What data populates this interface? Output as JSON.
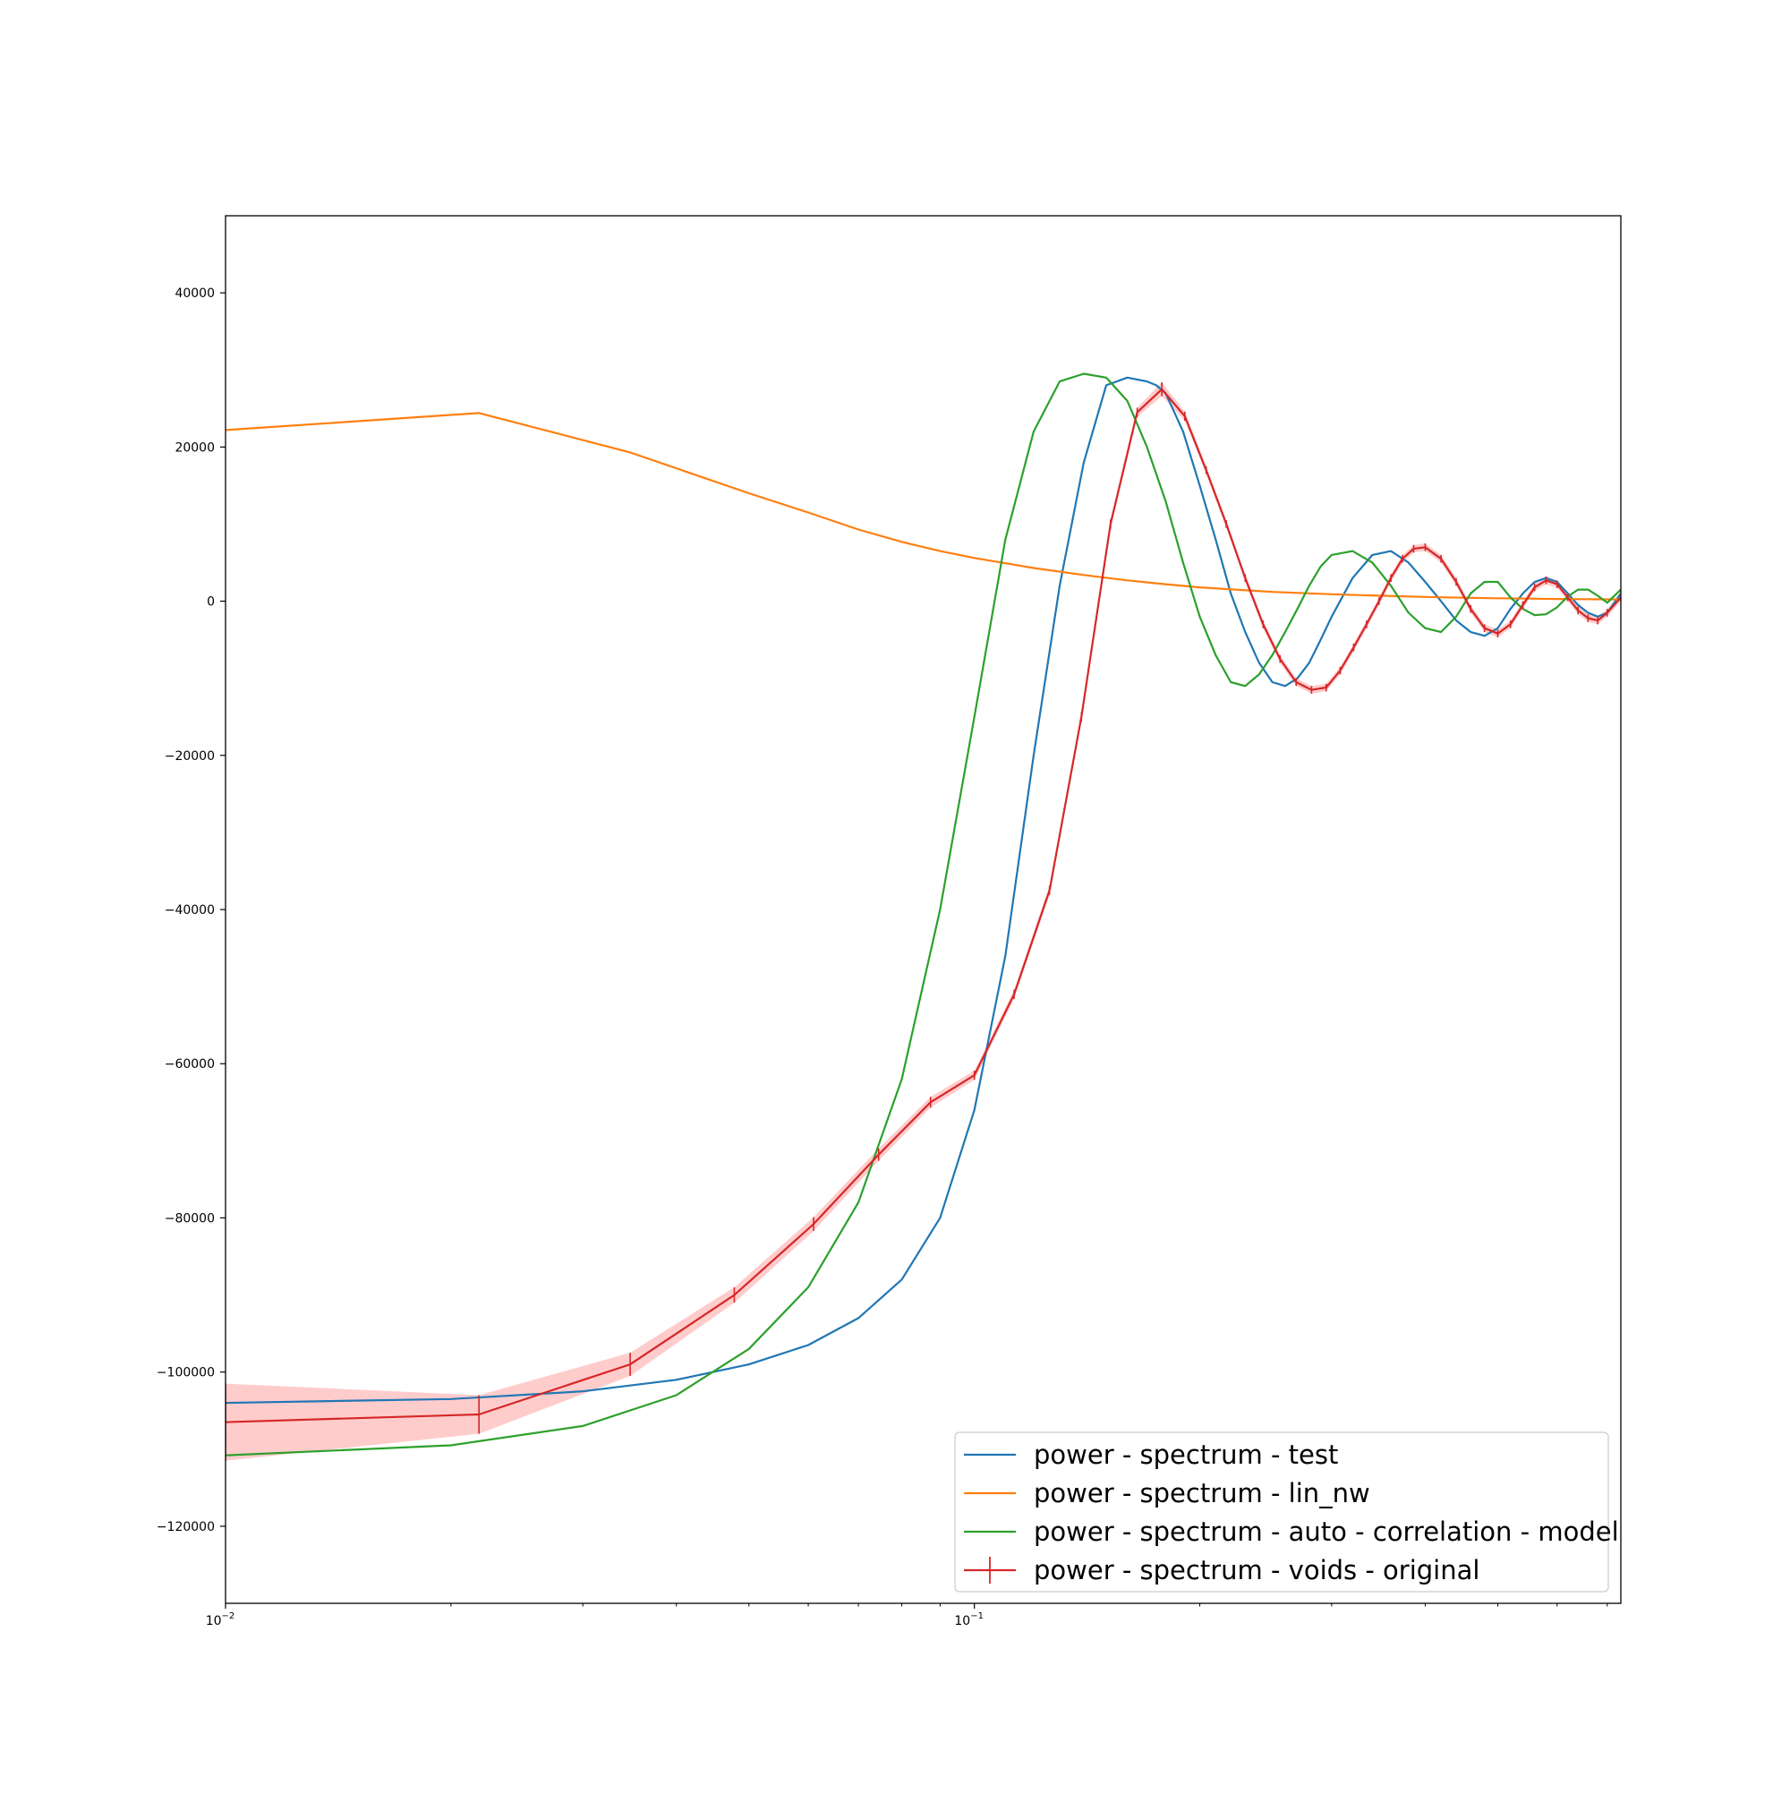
{
  "chart_data": {
    "type": "line",
    "title": "",
    "xlabel": "",
    "ylabel": "",
    "xscale": "log",
    "xlim": [
      0.01,
      0.73
    ],
    "ylim": [
      -130000,
      50000
    ],
    "grid": false,
    "legend_placement": "lower right",
    "x_tick_labels": [
      {
        "value": 0.01,
        "base": "10",
        "exp": "−2"
      },
      {
        "value": 0.1,
        "base": "10",
        "exp": "−1"
      }
    ],
    "x_minor_ticks": [
      0.02,
      0.03,
      0.04,
      0.05,
      0.06,
      0.07,
      0.08,
      0.09,
      0.2,
      0.3,
      0.4,
      0.5,
      0.6,
      0.7
    ],
    "y_ticks": [
      40000,
      20000,
      0,
      -20000,
      -40000,
      -60000,
      -80000,
      -100000,
      -120000
    ],
    "y_tick_labels": [
      "40000",
      "20000",
      "0",
      "−20000",
      "−40000",
      "−60000",
      "−80000",
      "−100000",
      "−120000"
    ],
    "series": [
      {
        "name": "power - spectrum - test",
        "color": "#1f77b4",
        "style": "line",
        "x": [
          0.01,
          0.02,
          0.03,
          0.04,
          0.05,
          0.06,
          0.07,
          0.08,
          0.09,
          0.1,
          0.11,
          0.12,
          0.13,
          0.14,
          0.15,
          0.16,
          0.17,
          0.175,
          0.18,
          0.19,
          0.2,
          0.21,
          0.22,
          0.23,
          0.24,
          0.25,
          0.26,
          0.27,
          0.28,
          0.29,
          0.3,
          0.32,
          0.34,
          0.36,
          0.38,
          0.4,
          0.42,
          0.44,
          0.46,
          0.48,
          0.5,
          0.52,
          0.54,
          0.56,
          0.58,
          0.6,
          0.62,
          0.64,
          0.66,
          0.68,
          0.7,
          0.73
        ],
        "y": [
          -104000,
          -103500,
          -102500,
          -101000,
          -99000,
          -96500,
          -93000,
          -88000,
          -80000,
          -66000,
          -46000,
          -20000,
          2000,
          18000,
          28000,
          29000,
          28500,
          28000,
          27000,
          22000,
          15000,
          8000,
          1000,
          -4000,
          -8000,
          -10500,
          -11000,
          -10000,
          -8000,
          -5000,
          -2000,
          3000,
          6000,
          6500,
          5000,
          2500,
          0,
          -2500,
          -4000,
          -4500,
          -3500,
          -1000,
          1000,
          2500,
          3000,
          2500,
          1000,
          -500,
          -1500,
          -2000,
          -1500,
          1000
        ]
      },
      {
        "name": "power - spectrum - lin_nw",
        "color": "#ff7f0e",
        "style": "line",
        "x": [
          0.01,
          0.0218,
          0.0347,
          0.05,
          0.06,
          0.07,
          0.08,
          0.09,
          0.1,
          0.12,
          0.14,
          0.16,
          0.18,
          0.2,
          0.25,
          0.3,
          0.35,
          0.4,
          0.45,
          0.5,
          0.55,
          0.6,
          0.65,
          0.7,
          0.73
        ],
        "y": [
          22200,
          24400,
          19300,
          14000,
          11500,
          9300,
          7700,
          6500,
          5600,
          4300,
          3400,
          2700,
          2200,
          1800,
          1200,
          900,
          700,
          550,
          450,
          380,
          330,
          290,
          260,
          240,
          230
        ]
      },
      {
        "name": "power - spectrum - auto - correlation - model",
        "color": "#2ca02c",
        "style": "line",
        "x": [
          0.01,
          0.02,
          0.03,
          0.04,
          0.05,
          0.06,
          0.07,
          0.08,
          0.09,
          0.1,
          0.11,
          0.12,
          0.13,
          0.14,
          0.15,
          0.16,
          0.165,
          0.17,
          0.18,
          0.19,
          0.2,
          0.21,
          0.22,
          0.23,
          0.24,
          0.25,
          0.26,
          0.27,
          0.28,
          0.29,
          0.3,
          0.32,
          0.34,
          0.36,
          0.38,
          0.4,
          0.42,
          0.44,
          0.46,
          0.48,
          0.5,
          0.52,
          0.54,
          0.56,
          0.58,
          0.6,
          0.62,
          0.64,
          0.66,
          0.68,
          0.7,
          0.73
        ],
        "y": [
          -110800,
          -109500,
          -107000,
          -103000,
          -97000,
          -89000,
          -78000,
          -62000,
          -40000,
          -15000,
          8000,
          22000,
          28500,
          29500,
          29000,
          26000,
          23000,
          20000,
          13000,
          5000,
          -2000,
          -7000,
          -10500,
          -11000,
          -9500,
          -7000,
          -4000,
          -1000,
          2000,
          4500,
          6000,
          6500,
          5000,
          2000,
          -1500,
          -3500,
          -4000,
          -2000,
          1000,
          2500,
          2500,
          500,
          -1000,
          -1800,
          -1700,
          -800,
          600,
          1500,
          1500,
          700,
          -200,
          1500
        ]
      },
      {
        "name": "power - spectrum - voids - original",
        "color": "#d62728",
        "band_color": "#ff9999",
        "style": "errorbar",
        "x": [
          0.01,
          0.0218,
          0.0347,
          0.0478,
          0.061,
          0.0745,
          0.0874,
          0.1,
          0.113,
          0.126,
          0.139,
          0.152,
          0.165,
          0.178,
          0.191,
          0.204,
          0.217,
          0.23,
          0.243,
          0.256,
          0.269,
          0.282,
          0.295,
          0.308,
          0.321,
          0.334,
          0.347,
          0.36,
          0.373,
          0.386,
          0.4,
          0.42,
          0.44,
          0.46,
          0.48,
          0.5,
          0.52,
          0.54,
          0.56,
          0.58,
          0.6,
          0.62,
          0.64,
          0.66,
          0.68,
          0.7,
          0.73
        ],
        "y": [
          -106500,
          -105500,
          -99000,
          -90000,
          -80800,
          -71800,
          -65000,
          -61500,
          -51000,
          -37500,
          -15000,
          10000,
          24500,
          27500,
          24000,
          17000,
          10000,
          3000,
          -3000,
          -7500,
          -10500,
          -11500,
          -11200,
          -9000,
          -6000,
          -3000,
          0,
          3000,
          5500,
          6800,
          7000,
          5500,
          2500,
          -1000,
          -3500,
          -4200,
          -3000,
          -500,
          1800,
          2700,
          2200,
          500,
          -1200,
          -2200,
          -2500,
          -1500,
          500
        ],
        "yerr": [
          5000,
          2500,
          1500,
          1000,
          900,
          800,
          700,
          600,
          600,
          600,
          600,
          600,
          600,
          900,
          600,
          500,
          500,
          500,
          500,
          500,
          500,
          500,
          500,
          500,
          500,
          500,
          500,
          500,
          500,
          500,
          500,
          500,
          500,
          500,
          500,
          500,
          500,
          500,
          500,
          500,
          500,
          500,
          500,
          500,
          500,
          500,
          500
        ]
      }
    ]
  }
}
